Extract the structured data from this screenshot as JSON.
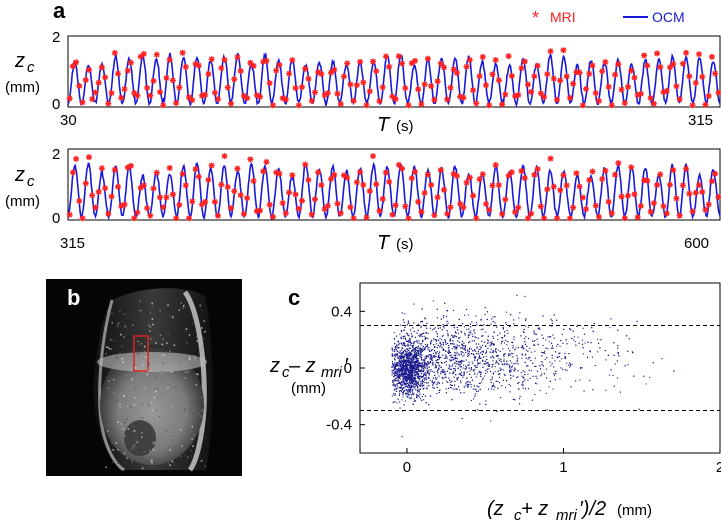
{
  "panel_labels": {
    "a": "a",
    "b": "b",
    "c": "c"
  },
  "colors": {
    "mri": "#ff2020",
    "ocm": "#1a1ad6",
    "scatter": "#1a1a8c",
    "roi": "#e02020",
    "dashed": "#000000"
  },
  "chart_data": [
    {
      "type": "line",
      "panel": "a-top",
      "legend": [
        {
          "name": "MRI",
          "marker": "*",
          "color": "#ff2020"
        },
        {
          "name": "OCM",
          "marker": "line",
          "color": "#1a1ad6"
        }
      ],
      "legend_placement": "top-right",
      "ylabel": "z_c",
      "ylabel_main": "z",
      "ylabel_sub": "c",
      "yunit": "(mm)",
      "xlabel": "T",
      "xunit": "(s)",
      "xlim": [
        30,
        315
      ],
      "ylim": [
        0,
        2
      ],
      "yticks": [
        "0",
        "2"
      ],
      "xtick_left": "30",
      "xtick_right": "315",
      "breath_cycles": 48,
      "series": [
        {
          "name": "OCM",
          "signal": "periodic",
          "min": 0.1,
          "max": 1.5
        },
        {
          "name": "MRI",
          "signal": "sampled",
          "min": 0.1,
          "max": 1.6
        }
      ]
    },
    {
      "type": "line",
      "panel": "a-bottom",
      "ylabel": "z_c",
      "ylabel_main": "z",
      "ylabel_sub": "c",
      "yunit": "(mm)",
      "xlabel": "T",
      "xunit": "(s)",
      "xlim": [
        315,
        600
      ],
      "ylim": [
        0,
        2
      ],
      "yticks": [
        "0",
        "2"
      ],
      "xtick_left": "315",
      "xtick_right": "600",
      "breath_cycles": 48,
      "series": [
        {
          "name": "OCM",
          "signal": "periodic",
          "min": 0.1,
          "max": 1.6
        },
        {
          "name": "MRI",
          "signal": "sampled",
          "min": 0.1,
          "max": 1.8
        }
      ]
    },
    {
      "type": "scatter",
      "panel": "c",
      "xlabel": "(z_c + z_mri')/2 (mm)",
      "ylabel": "z_c − z_mri' (mm)",
      "xlim": [
        -0.3,
        2.0
      ],
      "ylim": [
        -0.6,
        0.6
      ],
      "xticks": [
        0,
        1,
        2
      ],
      "xtick_labels": [
        "0",
        "1",
        "2"
      ],
      "yticks": [
        0.4,
        0,
        -0.4
      ],
      "ytick_labels": [
        "0.4",
        "0",
        "-0.4"
      ],
      "limits_of_agreement": [
        0.3,
        -0.3
      ],
      "cluster": {
        "x_center": 0.0,
        "y_center": 0.0
      },
      "n_points": 4200
    }
  ],
  "axis_text": {
    "z": "z",
    "c": "c",
    "mm": "(mm)",
    "T": "T",
    "s": "(s)",
    "c_ylab_a": "z",
    "c_ylab_sub1": "c",
    "c_ylab_minus": " – z",
    "c_ylab_sub2": "mri",
    "c_ylab_prime": "′",
    "c_xlab_open": "(z",
    "c_xlab_sub1": "c",
    "c_xlab_plus": " + z",
    "c_xlab_sub2": "mri",
    "c_xlab_close": "′)/2",
    "c_xlab_unit": " (mm)"
  }
}
